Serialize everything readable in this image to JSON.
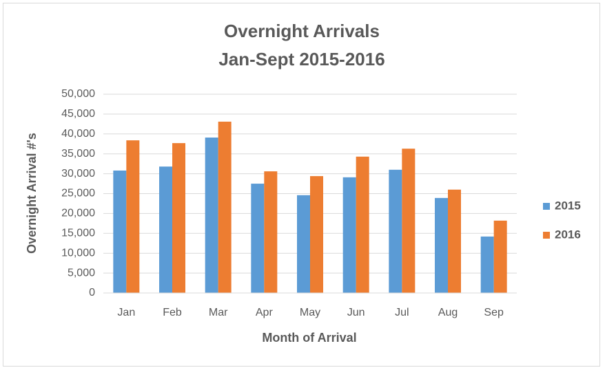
{
  "chart_data": {
    "type": "bar",
    "title": "Overnight Arrivals",
    "subtitle": "Jan-Sept 2015-2016",
    "x_label": "Month of Arrival",
    "y_label": "Overnight Arrival #'s",
    "categories": [
      "Jan",
      "Feb",
      "Mar",
      "Apr",
      "May",
      "Jun",
      "Jul",
      "Aug",
      "Sep"
    ],
    "series": [
      {
        "name": "2015",
        "color": "#5b9bd5",
        "values": [
          30800,
          31800,
          39100,
          27500,
          24600,
          29100,
          31000,
          23900,
          14200
        ]
      },
      {
        "name": "2016",
        "color": "#ed7d31",
        "values": [
          38400,
          37700,
          43100,
          30600,
          29400,
          34300,
          36300,
          26000,
          18200
        ]
      }
    ],
    "ylim": [
      0,
      50000
    ],
    "yticks": [
      0,
      {
        "value": 5000,
        "label": "5,000"
      },
      {
        "value": 10000,
        "label": "10,000"
      },
      {
        "value": 15000,
        "label": "15,000"
      },
      {
        "value": 20000,
        "label": "20,000"
      },
      {
        "value": 25000,
        "label": "25,000"
      },
      {
        "value": 30000,
        "label": "30,000"
      },
      {
        "value": 35000,
        "label": "35,000"
      },
      {
        "value": 40000,
        "label": "40,000"
      },
      {
        "value": 45000,
        "label": "45,000"
      },
      {
        "value": 50000,
        "label": "50,000"
      }
    ],
    "grid": true,
    "legend": "right"
  }
}
